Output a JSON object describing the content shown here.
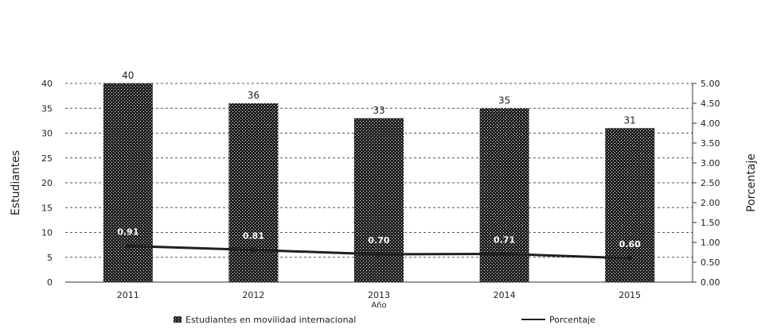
{
  "title_line_1": "",
  "title_line_2": "",
  "chart_data": {
    "type": "bar",
    "categories": [
      "2011",
      "2012",
      "2013",
      "2014",
      "2015"
    ],
    "series": [
      {
        "name": "Estudiantes en movilidad internacional",
        "type": "bar",
        "axis": "left",
        "values": [
          40,
          36,
          33,
          35,
          31
        ]
      },
      {
        "name": "Porcentaje",
        "type": "line",
        "axis": "right",
        "values": [
          0.91,
          0.81,
          0.7,
          0.71,
          0.6
        ]
      }
    ],
    "xlabel": "Año",
    "ylabel": "Estudiantes",
    "ylabel_right": "Porcentaje",
    "ylim": [
      0,
      40
    ],
    "yticks": [
      "0",
      "5",
      "10",
      "15",
      "20",
      "25",
      "30",
      "35",
      "40"
    ],
    "ylim_right": [
      0,
      5
    ],
    "yticks_right": [
      "0.00",
      "0.50",
      "1.00",
      "1.50",
      "2.00",
      "2.50",
      "3.00",
      "3.50",
      "4.00",
      "4.50",
      "5.00"
    ],
    "bar_labels": [
      "40",
      "36",
      "33",
      "35",
      "31"
    ],
    "line_labels": [
      "0.91",
      "0.81",
      "0.70",
      "0.71",
      "0.60"
    ],
    "grid": "horizontal dashed",
    "legend_position": "bottom",
    "colors": {
      "bar": "#1f1f1f",
      "line": "#1f1f1f",
      "grid": "#555555"
    }
  }
}
